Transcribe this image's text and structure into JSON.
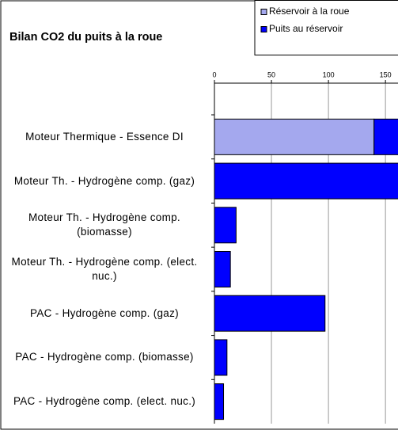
{
  "chart_data": {
    "type": "bar",
    "orientation": "horizontal",
    "stacked": true,
    "title": "Bilan CO2 du puits à la roue",
    "categories": [
      "Moteur Thermique - Essence DI",
      "Moteur Th. - Hydrogène comp. (gaz)",
      "Moteur Th. - Hydrogène comp. (biomasse)",
      "Moteur Th. - Hydrogène comp. (elect. nuc.)",
      "PAC - Hydrogène comp. (gaz)",
      "PAC - Hydrogène comp. (biomasse)",
      "PAC - Hydrogène comp. (elect. nuc.)"
    ],
    "series": [
      {
        "name": "Réservoir à la roue",
        "color": "#a4a8ee",
        "values": [
          140,
          0,
          0,
          0,
          0,
          0,
          0
        ]
      },
      {
        "name": "Puits au réservoir",
        "color": "#0000ff",
        "values": [
          25,
          175,
          19,
          14,
          97,
          11,
          8
        ]
      }
    ],
    "xlim": [
      0,
      161
    ],
    "xticks": [
      0,
      50,
      100,
      150
    ],
    "grid": true,
    "legend": "top-right"
  }
}
